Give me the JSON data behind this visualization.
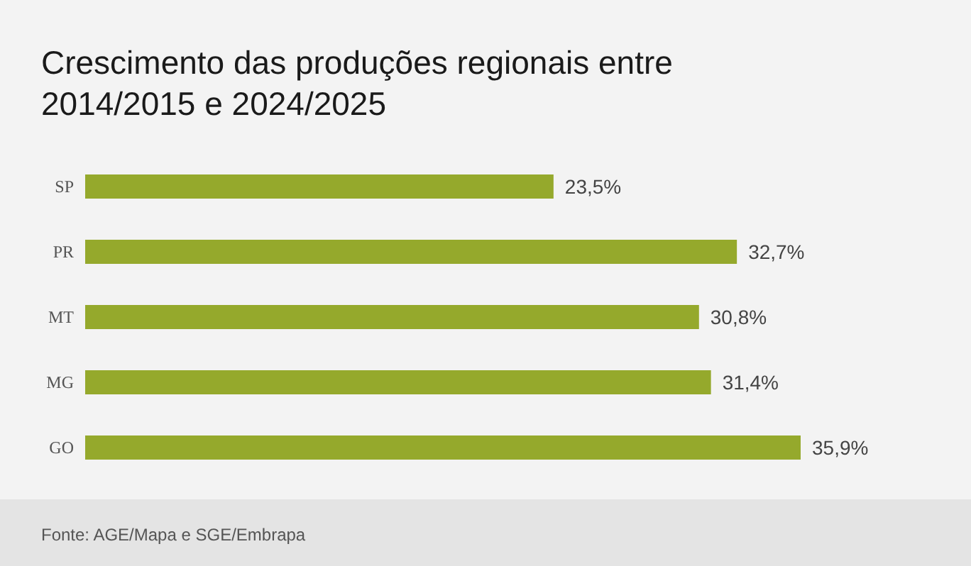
{
  "chart_data": {
    "type": "bar",
    "orientation": "horizontal",
    "title": "Crescimento das produções regionais entre 2014/2015 e 2024/2025",
    "categories": [
      "SP",
      "PR",
      "MT",
      "MG",
      "GO"
    ],
    "values": [
      23.5,
      32.7,
      30.8,
      31.4,
      35.9
    ],
    "value_labels": [
      "23,5%",
      "32,7%",
      "30,8%",
      "31,4%",
      "35,9%"
    ],
    "color": "#95a92c",
    "grid": false,
    "tick_labels": "y",
    "annotations": [
      "Fonte: AGE/Mapa e SGE/Embrapa"
    ]
  }
}
